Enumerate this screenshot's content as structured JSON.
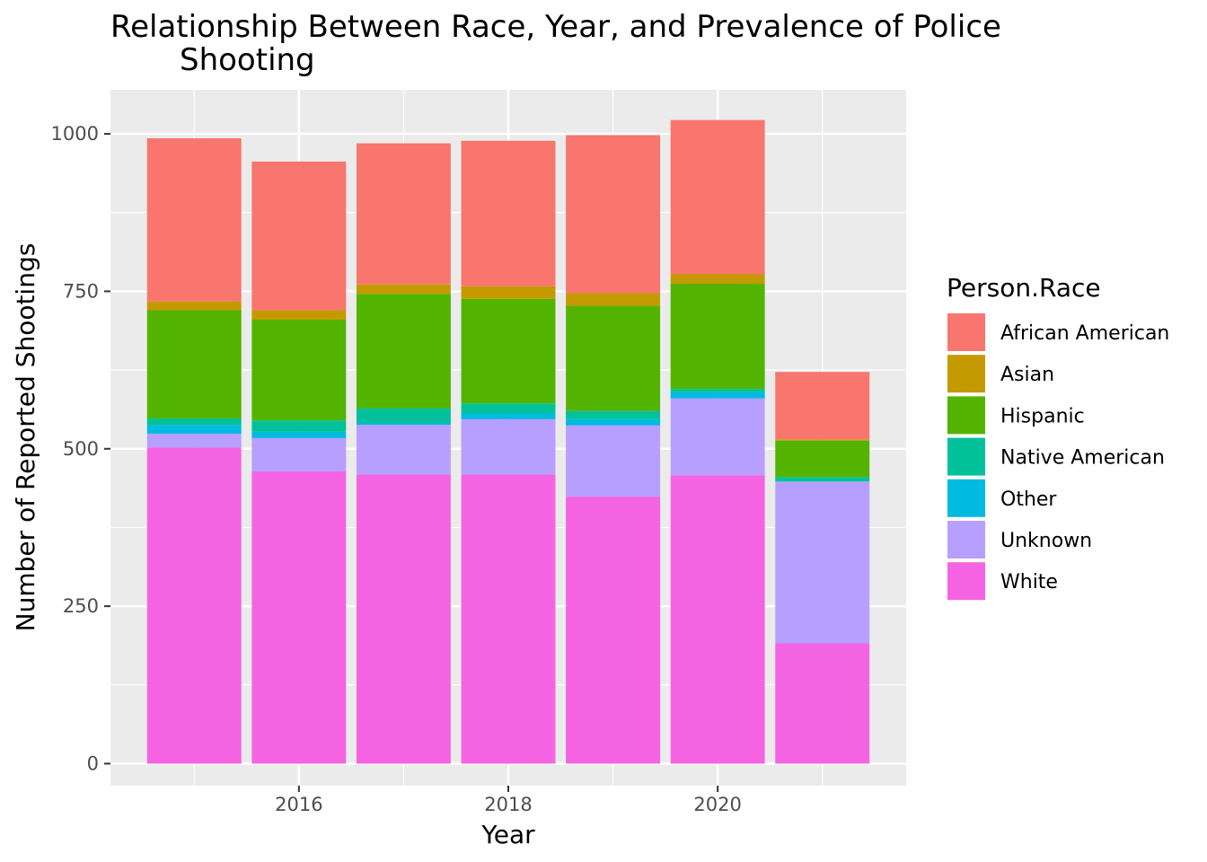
{
  "chart_data": {
    "type": "bar",
    "stacked": true,
    "title_lines": [
      "Relationship Between Race, Year, and Prevalence of Police",
      "Shooting"
    ],
    "xlabel": "Year",
    "ylabel": "Number of Reported Shootings",
    "x_ticks": [
      "2016",
      "2018",
      "2020"
    ],
    "y_ticks": [
      "0",
      "250",
      "500",
      "750",
      "1000"
    ],
    "ylim": [
      -35,
      1070
    ],
    "xlim": [
      2014.2,
      2021.8
    ],
    "grid": true,
    "legend_title": "Person.Race",
    "legend_position": "right",
    "categories": [
      2015,
      2016,
      2017,
      2018,
      2019,
      2020,
      2021
    ],
    "series": [
      {
        "name": "White",
        "color": "#F564E3",
        "values": [
          502,
          464,
          459,
          459,
          424,
          458,
          191
        ]
      },
      {
        "name": "Unknown",
        "color": "#B79FFF",
        "values": [
          22,
          53,
          79,
          88,
          113,
          122,
          257
        ]
      },
      {
        "name": "Other",
        "color": "#00BAE0",
        "values": [
          14,
          10,
          3,
          9,
          10,
          10,
          0
        ]
      },
      {
        "name": "Native American",
        "color": "#00C19A",
        "values": [
          10,
          18,
          23,
          16,
          13,
          5,
          7
        ]
      },
      {
        "name": "Hispanic",
        "color": "#53B400",
        "values": [
          172,
          160,
          182,
          166,
          167,
          167,
          58
        ]
      },
      {
        "name": "Asian",
        "color": "#C49A00",
        "values": [
          14,
          15,
          15,
          20,
          20,
          15,
          2
        ]
      },
      {
        "name": "African American",
        "color": "#F8766D",
        "values": [
          259,
          236,
          224,
          231,
          251,
          245,
          107
        ]
      }
    ],
    "legend_order": [
      "African American",
      "Asian",
      "Hispanic",
      "Native American",
      "Other",
      "Unknown",
      "White"
    ]
  }
}
